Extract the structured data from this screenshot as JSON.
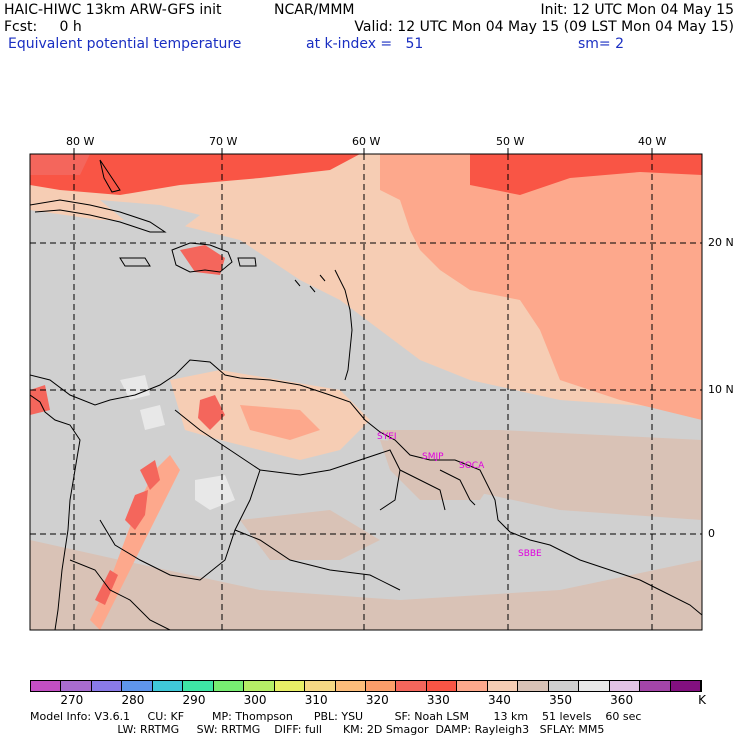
{
  "header": {
    "model_title": "HAIC-HIWC 13km ARW-GFS init",
    "center": "NCAR/MMM",
    "init": "Init: 12 UTC Mon 04 May 15",
    "fcst": "Fcst:     0 h",
    "valid": "Valid: 12 UTC Mon 04 May 15 (09 LST Mon 04 May 15)",
    "field": "Equivalent potential temperature",
    "level": "at k-index =   51",
    "smooth": "sm= 2"
  },
  "map": {
    "longitude_labels": [
      "80 W",
      "70 W",
      "60 W",
      "50 W",
      "40 W"
    ],
    "latitude_labels": [
      "20 N",
      "10 N",
      "0"
    ],
    "stations": [
      "SYEI",
      "SMJP",
      "SOCA",
      "SBBE"
    ]
  },
  "colorbar": {
    "tick_labels": [
      "270",
      "280",
      "290",
      "300",
      "310",
      "320",
      "330",
      "340",
      "350",
      "360"
    ],
    "unit": "K",
    "colors": [
      "#c34fc3",
      "#a86ccf",
      "#8a7ae8",
      "#5f95eb",
      "#40c8d8",
      "#3ee6a5",
      "#77ee72",
      "#b5ee66",
      "#e8ef66",
      "#f6d884",
      "#fcbd7b",
      "#fb9e6a",
      "#f4665c",
      "#f95545",
      "#fda88c",
      "#f6cdb4",
      "#d9c2b6",
      "#d0d0d0",
      "#e8e8e8",
      "#e3c3e6",
      "#a445a8",
      "#82107f"
    ]
  },
  "model_info": {
    "line1": "Model Info: V3.6.1     CU: KF        MP: Thompson      PBL: YSU         SF: Noah LSM       13 km    51 levels    60 sec",
    "line2": "                         LW: RRTMG     SW: RRTMG    DIFF: full      KM: 2D Smagor  DAMP: Rayleigh3   SFLAY: MM5"
  }
}
